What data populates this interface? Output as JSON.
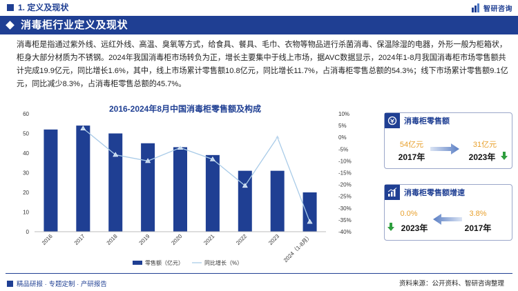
{
  "header": {
    "section_title": "1. 定义及现状",
    "logo_text": "智研咨询",
    "banner_title": "消毒柜行业定义及现状"
  },
  "description": "消毒柜是指通过紫外线、远红外线、高温、臭氧等方式，给食具、餐具、毛巾、衣物等物品进行杀菌消毒、保温除湿的电器，外形一般为柜箱状，柜身大部分材质为不锈钢。2024年我国消毒柜市场转负为正，增长主要集中于线上市场，据AVC数据显示，2024年1-8月我国消毒柜市场零售额共计完成19.9亿元，同比增长1.6%，其中，线上市场累计零售额10.8亿元，同比增长11.7%，占消毒柜零售总额的54.3%；线下市场累计零售额9.1亿元，同比减少8.3%，占消毒柜零售总额的45.7%。",
  "chart_data": {
    "type": "bar",
    "title": "2016-2024年8月中国消毒柜零售额及构成",
    "categories": [
      "2016",
      "2017",
      "2018",
      "2019",
      "2020",
      "2021",
      "2022",
      "2023",
      "2024（1-8月）"
    ],
    "series": [
      {
        "name": "零售额（亿元）",
        "type": "bar",
        "axis": "left",
        "values": [
          52,
          54,
          50,
          45,
          43,
          39,
          31,
          31,
          20
        ]
      },
      {
        "name": "同比增长（%）",
        "type": "line",
        "axis": "right",
        "values": [
          null,
          3.8,
          -7.4,
          -10,
          -4.4,
          -9.3,
          -20.5,
          0,
          -35.8
        ]
      }
    ],
    "y_left": {
      "min": 0,
      "max": 60,
      "ticks": [
        "0",
        "10",
        "20",
        "30",
        "40",
        "50",
        "60"
      ]
    },
    "y_right": {
      "min": -40,
      "max": 10,
      "ticks": [
        "-40%",
        "-35%",
        "-30%",
        "-25%",
        "-20%",
        "-15%",
        "-10%",
        "-5%",
        "0%",
        "5%",
        "10%"
      ]
    },
    "legend_position": "bottom",
    "colors": {
      "bar": "#1f3f93",
      "line": "#a9cbe8",
      "marker": "#bcd6ee"
    }
  },
  "cards": [
    {
      "title": "消毒柜零售额",
      "left_value": "54亿元",
      "left_year": "2017年",
      "right_value": "31亿元",
      "right_year": "2023年",
      "trend": "down"
    },
    {
      "title": "消毒柜零售额增速",
      "left_value": "0.0%",
      "left_year": "2023年",
      "right_value": "3.8%",
      "right_year": "2017年",
      "trend": "down"
    }
  ],
  "footer": {
    "left": "精品研报 · 专题定制 · 产研报告",
    "right": "资料来源：公开资料、智研咨询整理"
  },
  "colors": {
    "primary": "#1f3f93",
    "accent": "#e8a02c",
    "down_arrow": "#2e9e3e"
  }
}
